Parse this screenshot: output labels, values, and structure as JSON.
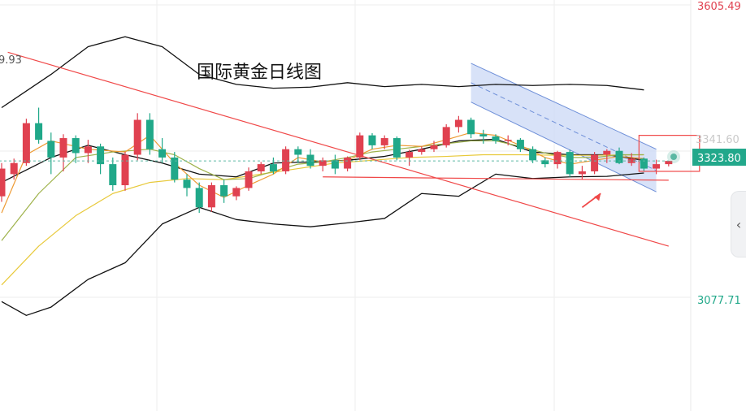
{
  "chart_data": {
    "type": "candlestick",
    "title": "国际黄金日线图",
    "y_ticks": [
      "3605.49",
      "3077.71"
    ],
    "left_edge_label": "9.93",
    "truncated_level_label": "3341.60",
    "current_price": "3323.80",
    "colors": {
      "up": "#e04150",
      "down": "#20a889",
      "bollinger": "#111111",
      "ma_short": "#ee9a33",
      "ma_mid": "#9eb24a",
      "ma_long": "#e8c93a",
      "trendline": "#f04848",
      "channel_fill": "#c8d6f5",
      "channel_line": "#6e8fd8",
      "price_line": "#5bb8a3",
      "grid": "#eeeeee"
    },
    "candles": [
      [
        3260,
        3320,
        3250,
        3310
      ],
      [
        3300,
        3328,
        3290,
        3320
      ],
      [
        3320,
        3400,
        3315,
        3392
      ],
      [
        3392,
        3420,
        3355,
        3362
      ],
      [
        3360,
        3375,
        3300,
        3330
      ],
      [
        3330,
        3372,
        3305,
        3365
      ],
      [
        3365,
        3370,
        3320,
        3338
      ],
      [
        3338,
        3362,
        3320,
        3350
      ],
      [
        3350,
        3355,
        3300,
        3318
      ],
      [
        3318,
        3330,
        3270,
        3280
      ],
      [
        3280,
        3340,
        3270,
        3335
      ],
      [
        3335,
        3410,
        3325,
        3398
      ],
      [
        3398,
        3410,
        3335,
        3345
      ],
      [
        3345,
        3365,
        3320,
        3330
      ],
      [
        3330,
        3340,
        3285,
        3290
      ],
      [
        3290,
        3300,
        3260,
        3275
      ],
      [
        3275,
        3285,
        3230,
        3240
      ],
      [
        3240,
        3285,
        3232,
        3280
      ],
      [
        3280,
        3290,
        3248,
        3260
      ],
      [
        3260,
        3278,
        3253,
        3275
      ],
      [
        3275,
        3312,
        3270,
        3305
      ],
      [
        3305,
        3322,
        3300,
        3318
      ],
      [
        3318,
        3330,
        3300,
        3305
      ],
      [
        3305,
        3350,
        3300,
        3345
      ],
      [
        3345,
        3350,
        3320,
        3335
      ],
      [
        3335,
        3345,
        3310,
        3315
      ],
      [
        3315,
        3330,
        3305,
        3325
      ],
      [
        3325,
        3335,
        3300,
        3310
      ],
      [
        3310,
        3332,
        3305,
        3330
      ],
      [
        3330,
        3375,
        3325,
        3370
      ],
      [
        3370,
        3374,
        3345,
        3352
      ],
      [
        3352,
        3370,
        3345,
        3365
      ],
      [
        3365,
        3368,
        3325,
        3330
      ],
      [
        3330,
        3344,
        3315,
        3340
      ],
      [
        3340,
        3350,
        3335,
        3345
      ],
      [
        3345,
        3360,
        3340,
        3352
      ],
      [
        3352,
        3390,
        3348,
        3385
      ],
      [
        3385,
        3405,
        3375,
        3398
      ],
      [
        3398,
        3402,
        3365,
        3372
      ],
      [
        3372,
        3380,
        3355,
        3368
      ],
      [
        3368,
        3372,
        3355,
        3360
      ],
      [
        3360,
        3370,
        3352,
        3362
      ],
      [
        3362,
        3365,
        3340,
        3345
      ],
      [
        3345,
        3350,
        3320,
        3325
      ],
      [
        3325,
        3330,
        3312,
        3318
      ],
      [
        3318,
        3342,
        3310,
        3340
      ],
      [
        3340,
        3344,
        3295,
        3300
      ],
      [
        3300,
        3315,
        3290,
        3305
      ],
      [
        3305,
        3340,
        3300,
        3335
      ],
      [
        3335,
        3345,
        3320,
        3342
      ],
      [
        3342,
        3348,
        3318,
        3320
      ],
      [
        3320,
        3338,
        3315,
        3328
      ],
      [
        3328,
        3330,
        3305,
        3310
      ],
      [
        3310,
        3326,
        3300,
        3318
      ],
      [
        3318,
        3324,
        3314,
        3323.8
      ]
    ],
    "bollinger_upper": [
      [
        0,
        3420
      ],
      [
        4,
        3480
      ],
      [
        7,
        3530
      ],
      [
        10,
        3548
      ],
      [
        13,
        3530
      ],
      [
        16,
        3480
      ],
      [
        19,
        3462
      ],
      [
        22,
        3455
      ],
      [
        25,
        3457
      ],
      [
        28,
        3465
      ],
      [
        31,
        3458
      ],
      [
        34,
        3462
      ],
      [
        37,
        3458
      ],
      [
        40,
        3462
      ],
      [
        43,
        3460
      ],
      [
        46,
        3462
      ],
      [
        49,
        3460
      ],
      [
        52,
        3452
      ]
    ],
    "bollinger_middle": [
      [
        0,
        3285
      ],
      [
        4,
        3330
      ],
      [
        7,
        3352
      ],
      [
        10,
        3335
      ],
      [
        13,
        3320
      ],
      [
        16,
        3300
      ],
      [
        19,
        3295
      ],
      [
        22,
        3320
      ],
      [
        25,
        3322
      ],
      [
        28,
        3325
      ],
      [
        31,
        3332
      ],
      [
        34,
        3345
      ],
      [
        37,
        3360
      ],
      [
        40,
        3363
      ],
      [
        43,
        3340
      ],
      [
        46,
        3335
      ],
      [
        49,
        3335
      ],
      [
        52,
        3325
      ]
    ],
    "bollinger_lower": [
      [
        0,
        3070
      ],
      [
        2,
        3045
      ],
      [
        4,
        3060
      ],
      [
        7,
        3110
      ],
      [
        10,
        3140
      ],
      [
        13,
        3210
      ],
      [
        16,
        3240
      ],
      [
        19,
        3218
      ],
      [
        22,
        3210
      ],
      [
        25,
        3205
      ],
      [
        28,
        3212
      ],
      [
        31,
        3220
      ],
      [
        34,
        3265
      ],
      [
        37,
        3260
      ],
      [
        40,
        3300
      ],
      [
        43,
        3292
      ],
      [
        46,
        3295
      ],
      [
        49,
        3296
      ],
      [
        52,
        3302
      ]
    ],
    "ma_short": [
      [
        0,
        3230
      ],
      [
        2,
        3335
      ],
      [
        4,
        3360
      ],
      [
        7,
        3345
      ],
      [
        10,
        3340
      ],
      [
        12,
        3370
      ],
      [
        14,
        3320
      ],
      [
        16,
        3280
      ],
      [
        18,
        3258
      ],
      [
        20,
        3280
      ],
      [
        22,
        3300
      ],
      [
        24,
        3330
      ],
      [
        26,
        3322
      ],
      [
        28,
        3325
      ],
      [
        30,
        3345
      ],
      [
        32,
        3352
      ],
      [
        34,
        3350
      ],
      [
        36,
        3362
      ],
      [
        38,
        3375
      ],
      [
        40,
        3370
      ],
      [
        42,
        3352
      ],
      [
        44,
        3330
      ],
      [
        46,
        3318
      ],
      [
        48,
        3325
      ],
      [
        50,
        3332
      ],
      [
        52,
        3328
      ]
    ],
    "ma_mid": [
      [
        0,
        3180
      ],
      [
        3,
        3265
      ],
      [
        6,
        3330
      ],
      [
        9,
        3340
      ],
      [
        12,
        3345
      ],
      [
        14,
        3335
      ],
      [
        16,
        3310
      ],
      [
        18,
        3290
      ],
      [
        20,
        3292
      ],
      [
        22,
        3305
      ],
      [
        24,
        3318
      ],
      [
        26,
        3322
      ],
      [
        28,
        3330
      ],
      [
        30,
        3340
      ],
      [
        32,
        3345
      ],
      [
        34,
        3350
      ],
      [
        36,
        3355
      ],
      [
        38,
        3360
      ],
      [
        40,
        3360
      ],
      [
        42,
        3350
      ],
      [
        44,
        3338
      ],
      [
        46,
        3330
      ],
      [
        48,
        3330
      ],
      [
        50,
        3335
      ],
      [
        52,
        3335
      ]
    ],
    "ma_long": [
      [
        0,
        3100
      ],
      [
        3,
        3170
      ],
      [
        6,
        3225
      ],
      [
        9,
        3265
      ],
      [
        12,
        3285
      ],
      [
        15,
        3292
      ],
      [
        18,
        3290
      ],
      [
        21,
        3300
      ],
      [
        24,
        3310
      ],
      [
        27,
        3320
      ],
      [
        30,
        3325
      ],
      [
        33,
        3330
      ],
      [
        36,
        3332
      ],
      [
        39,
        3335
      ],
      [
        42,
        3335
      ],
      [
        45,
        3334
      ],
      [
        48,
        3334
      ],
      [
        52,
        3335
      ]
    ],
    "trendline_desc": [
      [
        0.5,
        3520
      ],
      [
        54,
        3170
      ]
    ],
    "channel_upper": [
      [
        38,
        3500
      ],
      [
        53,
        3345
      ]
    ],
    "channel_lower": [
      [
        38,
        3430
      ],
      [
        53,
        3268
      ]
    ],
    "support_line": [
      [
        26,
        3295
      ],
      [
        54,
        3289
      ]
    ],
    "box_range": {
      "x0": 51.6,
      "x1": 56.5,
      "y_top": 3370,
      "y_bottom": 3305
    },
    "ylim": [
      3020,
      3622
    ]
  }
}
